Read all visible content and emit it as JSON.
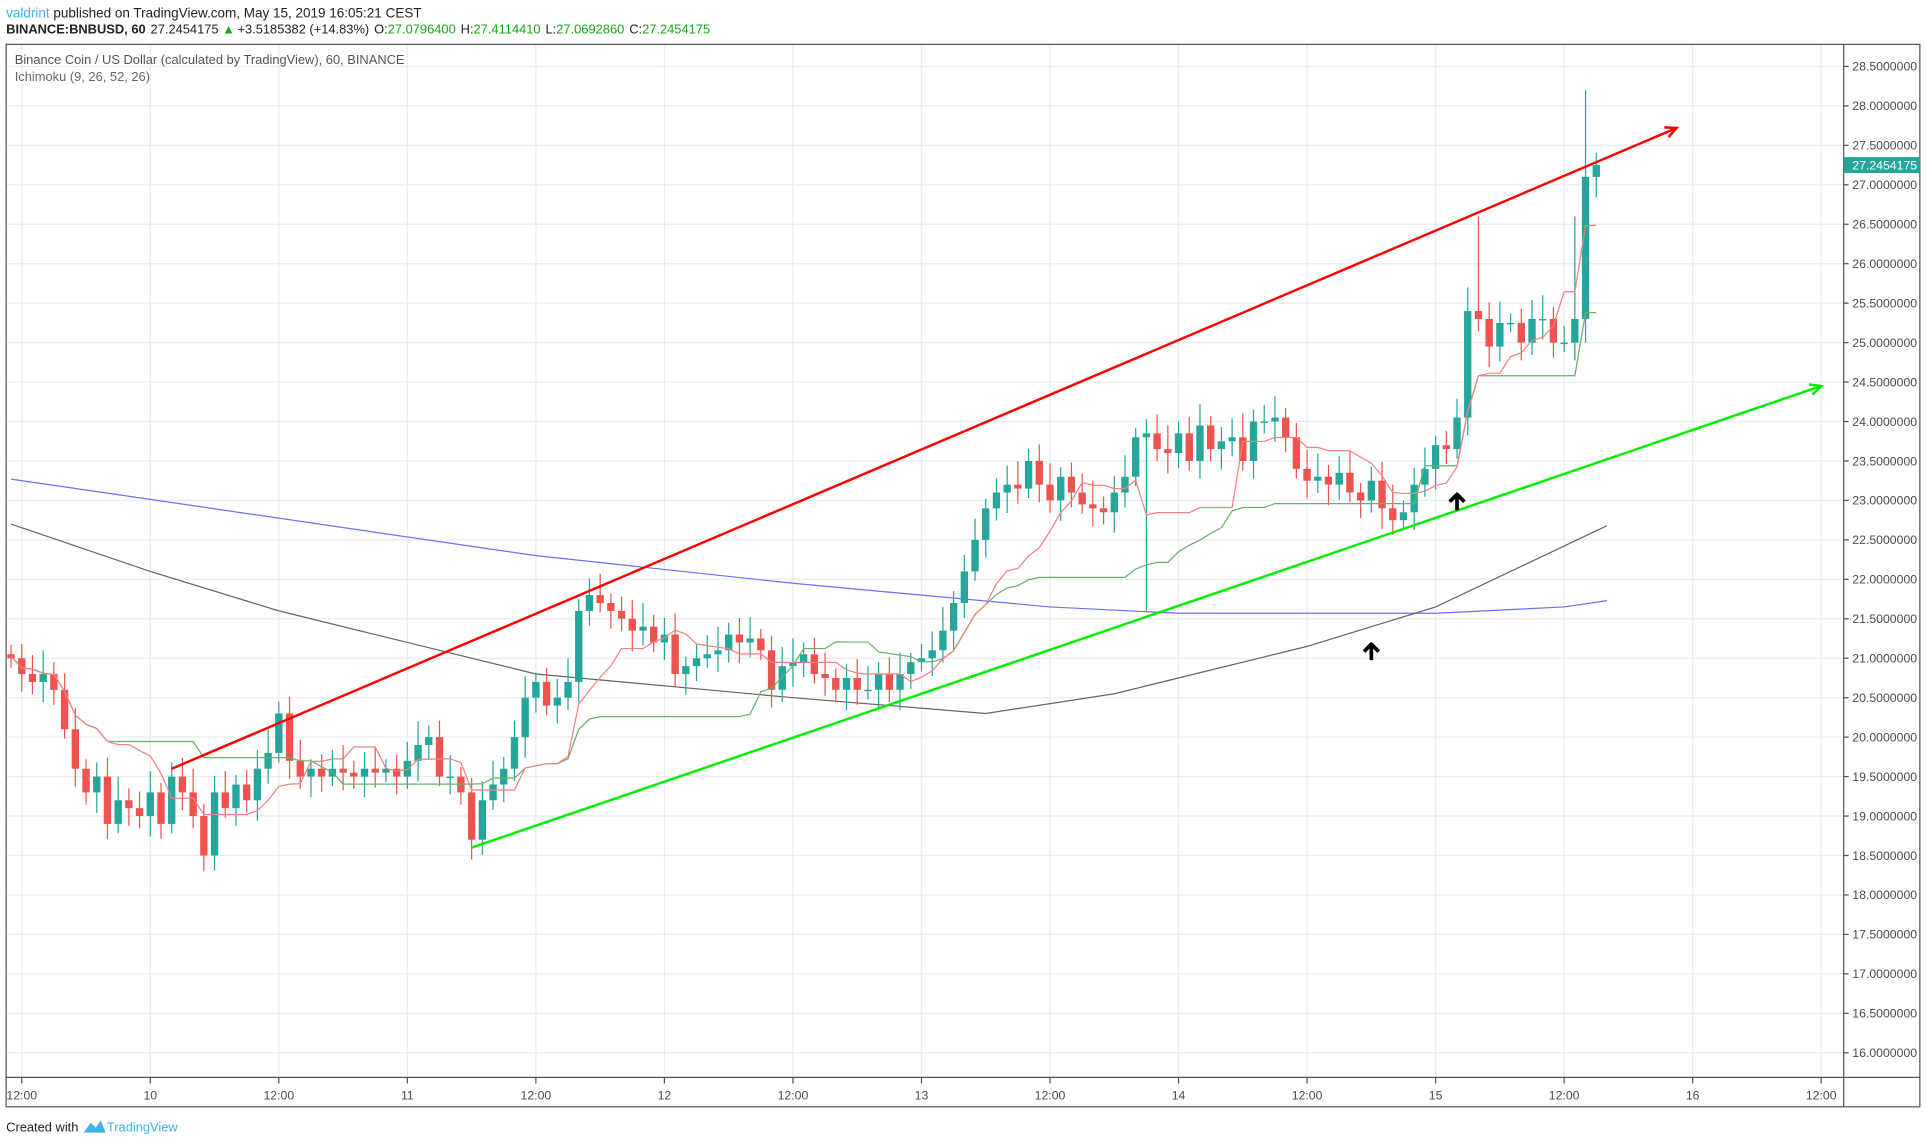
{
  "header": {
    "author": "valdrint",
    "published": "published on TradingView.com, May 15, 2019 16:05:21 CEST",
    "symbol": "BINANCE:BNBUSD, 60",
    "last": "27.2454175",
    "change": "+3.5185382 (+14.83%)",
    "o_label": "O:",
    "o": "27.0796400",
    "h_label": "H:",
    "h": "27.4114410",
    "l_label": "L:",
    "l": "27.0692860",
    "c_label": "C:",
    "c": "27.2454175"
  },
  "legend": {
    "title": "Binance Coin / US Dollar (calculated by TradingView), 60, BINANCE",
    "indicator": "Ichimoku (9, 26, 52, 26)"
  },
  "footer": {
    "created_with": "Created with",
    "brand": "TradingView"
  },
  "colors": {
    "up": "#26a69a",
    "down": "#ef5350",
    "conversion": "#f28080",
    "base": "#6aaf6a",
    "span_blue": "#6f6ff5",
    "span_grey": "#666666",
    "resistance": "#ff0000",
    "support": "#00ee00",
    "brand": "#3bb3e4",
    "price_tag": "#26a69a"
  },
  "chart_data": {
    "type": "candlestick",
    "interval_minutes": 60,
    "first_candle": "2019-05-09T11:00",
    "closes": [
      21.0,
      20.8,
      20.7,
      20.8,
      20.6,
      20.1,
      19.6,
      19.3,
      19.5,
      18.9,
      19.2,
      19.1,
      19.0,
      19.3,
      18.9,
      19.5,
      19.3,
      19.0,
      18.5,
      19.3,
      19.1,
      19.4,
      19.2,
      19.6,
      19.8,
      20.3,
      19.7,
      19.5,
      19.6,
      19.5,
      19.6,
      19.55,
      19.5,
      19.6,
      19.55,
      19.6,
      19.5,
      19.7,
      19.9,
      20.0,
      19.5,
      19.5,
      19.3,
      18.7,
      19.2,
      19.4,
      19.6,
      20.0,
      20.5,
      20.7,
      20.4,
      20.5,
      20.7,
      21.6,
      21.8,
      21.7,
      21.6,
      21.5,
      21.35,
      21.4,
      21.2,
      21.3,
      20.8,
      20.9,
      21.0,
      21.05,
      21.1,
      21.3,
      21.2,
      21.25,
      21.1,
      20.6,
      20.9,
      20.95,
      21.05,
      20.8,
      20.75,
      20.6,
      20.75,
      20.6,
      20.6,
      20.8,
      20.6,
      20.8,
      20.95,
      21.0,
      21.1,
      21.35,
      21.7,
      22.1,
      22.5,
      22.9,
      23.1,
      23.2,
      23.15,
      23.5,
      23.2,
      23.0,
      23.3,
      23.1,
      22.95,
      22.9,
      22.85,
      23.1,
      23.3,
      23.8,
      23.85,
      23.65,
      23.6,
      23.85,
      23.5,
      23.95,
      23.65,
      23.75,
      23.8,
      23.5,
      24.0,
      24.0,
      24.05,
      23.8,
      23.4,
      23.25,
      23.3,
      23.2,
      23.35,
      23.1,
      23.0,
      23.25,
      22.9,
      22.75,
      22.85,
      23.2,
      23.4,
      23.7,
      23.65,
      24.05,
      25.4,
      25.3,
      24.95,
      25.25,
      25.25,
      25.0,
      25.3,
      25.3,
      25.0,
      25.0,
      25.3,
      27.1,
      27.25
    ],
    "first_open": 21.05,
    "notable_highs": {
      "137": 26.6,
      "146": 26.6,
      "147": 28.2,
      "148": 27.41
    },
    "notable_lows": {
      "18": 18.3,
      "43": 18.45,
      "147": 25.0,
      "106": 21.6
    },
    "ichimoku": {
      "conversion_period": 9,
      "base_period": 26
    },
    "span_blue": [
      [
        "2019-05-09T11:00",
        23.27
      ],
      [
        "2019-05-11T12:00",
        22.3
      ],
      [
        "2019-05-12T12:00",
        21.95
      ],
      [
        "2019-05-13T12:00",
        21.65
      ],
      [
        "2019-05-14T00:00",
        21.57
      ],
      [
        "2019-05-15T00:00",
        21.57
      ],
      [
        "2019-05-15T12:00",
        21.65
      ],
      [
        "2019-05-15T16:00",
        21.73
      ]
    ],
    "span_grey": [
      [
        "2019-05-09T11:00",
        22.7
      ],
      [
        "2019-05-10T00:00",
        22.1
      ],
      [
        "2019-05-10T12:00",
        21.6
      ],
      [
        "2019-05-11T00:00",
        21.2
      ],
      [
        "2019-05-11T12:00",
        20.8
      ],
      [
        "2019-05-12T12:00",
        20.5
      ],
      [
        "2019-05-13T06:00",
        20.3
      ],
      [
        "2019-05-13T18:00",
        20.55
      ],
      [
        "2019-05-14T12:00",
        21.15
      ],
      [
        "2019-05-15T00:00",
        21.65
      ],
      [
        "2019-05-15T16:00",
        22.68
      ]
    ],
    "trendlines": [
      {
        "kind": "resistance",
        "from": [
          "2019-05-10T02:00",
          19.6
        ],
        "to": [
          "2019-05-15T22:30",
          27.72
        ]
      },
      {
        "kind": "support",
        "from": [
          "2019-05-11T06:00",
          18.6
        ],
        "to": [
          "2019-05-16T12:00",
          24.45
        ]
      }
    ],
    "arrows": [
      [
        "2019-05-15T02:00",
        23.0
      ],
      [
        "2019-05-14T18:00",
        21.1
      ]
    ],
    "ylim": [
      15.6,
      28.8
    ],
    "y_ticks": [
      "16.0000000",
      "16.5000000",
      "17.0000000",
      "17.5000000",
      "18.0000000",
      "18.5000000",
      "19.0000000",
      "19.5000000",
      "20.0000000",
      "20.5000000",
      "21.0000000",
      "21.5000000",
      "22.0000000",
      "22.5000000",
      "23.0000000",
      "23.5000000",
      "24.0000000",
      "24.5000000",
      "25.0000000",
      "25.5000000",
      "26.0000000",
      "26.5000000",
      "27.0000000",
      "27.5000000",
      "28.0000000",
      "28.5000000"
    ],
    "x_ticks": [
      [
        "2019-05-09T12:00",
        "12:00"
      ],
      [
        "2019-05-10T00:00",
        "10"
      ],
      [
        "2019-05-10T12:00",
        "12:00"
      ],
      [
        "2019-05-11T00:00",
        "11"
      ],
      [
        "2019-05-11T12:00",
        "12:00"
      ],
      [
        "2019-05-12T00:00",
        "12"
      ],
      [
        "2019-05-12T12:00",
        "12:00"
      ],
      [
        "2019-05-13T00:00",
        "13"
      ],
      [
        "2019-05-13T12:00",
        "12:00"
      ],
      [
        "2019-05-14T00:00",
        "14"
      ],
      [
        "2019-05-14T12:00",
        "12:00"
      ],
      [
        "2019-05-15T00:00",
        "15"
      ],
      [
        "2019-05-15T12:00",
        "12:00"
      ],
      [
        "2019-05-16T00:00",
        "16"
      ],
      [
        "2019-05-16T12:00",
        "12:00"
      ]
    ],
    "grid": true
  }
}
